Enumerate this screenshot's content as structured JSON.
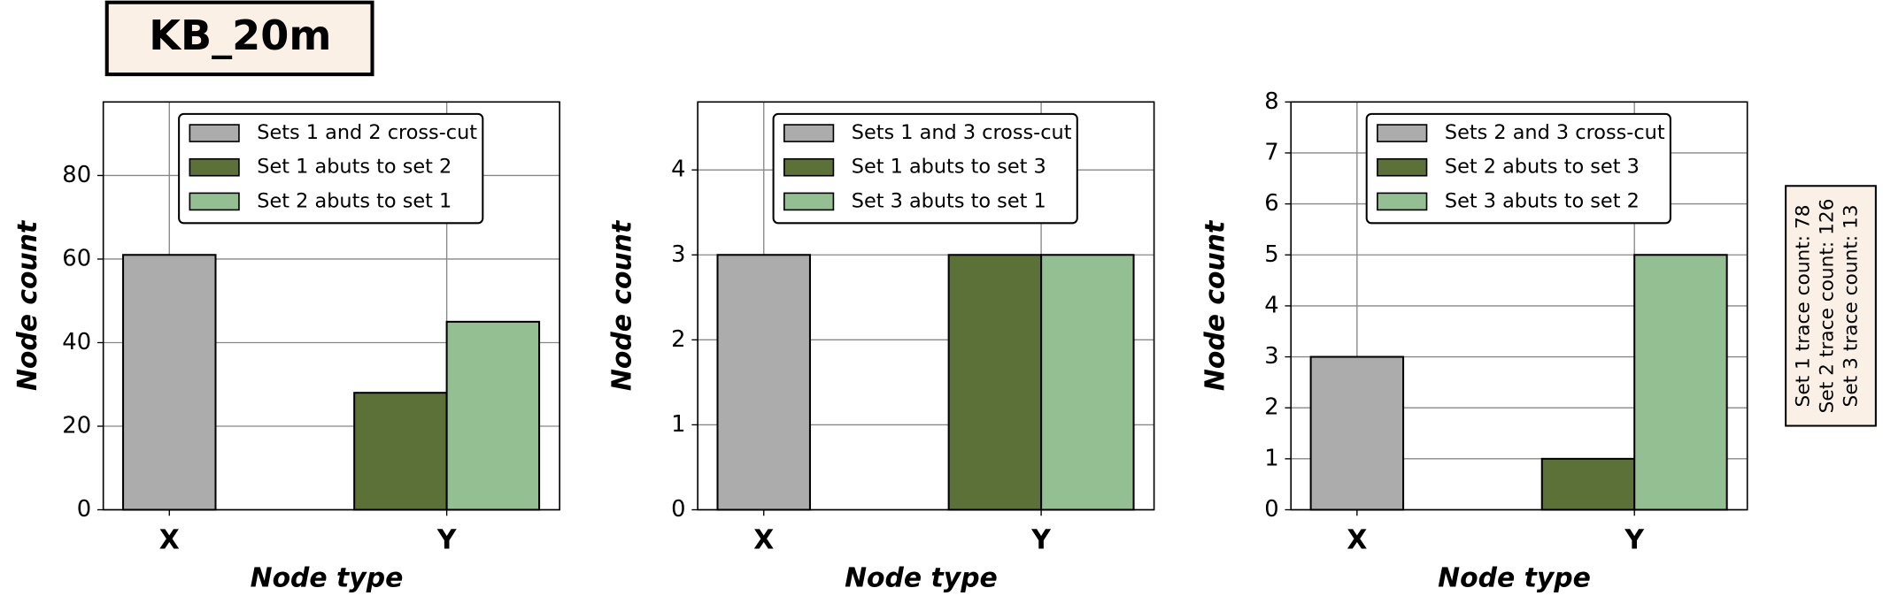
{
  "title": "KB_20m",
  "annotation": [
    "Set 1 trace count: 78",
    "Set 2 trace count: 126",
    "Set 3 trace count: 13"
  ],
  "chart_data": [
    {
      "type": "bar",
      "xlabel": "Node type",
      "ylabel": "Node count",
      "categories": [
        "X",
        "Y"
      ],
      "series": [
        {
          "name": "Sets 1 and 2 cross-cut",
          "color": "#acacac",
          "values": [
            61,
            null
          ]
        },
        {
          "name": "Set 1 abuts to set 2",
          "color": "#5c7137",
          "values": [
            null,
            28
          ]
        },
        {
          "name": "Set 2 abuts to set 1",
          "color": "#93bf93",
          "values": [
            null,
            45
          ]
        }
      ],
      "ylim": [
        0,
        97.6
      ],
      "yticks": [
        0,
        20,
        40,
        60,
        80
      ],
      "grid": true,
      "legend": "upper center"
    },
    {
      "type": "bar",
      "xlabel": "Node type",
      "ylabel": "Node count",
      "categories": [
        "X",
        "Y"
      ],
      "series": [
        {
          "name": "Sets 1 and 3 cross-cut",
          "color": "#acacac",
          "values": [
            3,
            null
          ]
        },
        {
          "name": "Set 1 abuts to set 3",
          "color": "#5c7137",
          "values": [
            null,
            3
          ]
        },
        {
          "name": "Set 3 abuts to set 1",
          "color": "#93bf93",
          "values": [
            null,
            3
          ]
        }
      ],
      "ylim": [
        0,
        4.8
      ],
      "yticks": [
        0,
        1,
        2,
        3,
        4
      ],
      "grid": true,
      "legend": "upper center"
    },
    {
      "type": "bar",
      "xlabel": "Node type",
      "ylabel": "Node count",
      "categories": [
        "X",
        "Y"
      ],
      "series": [
        {
          "name": "Sets 2 and 3 cross-cut",
          "color": "#acacac",
          "values": [
            3,
            null
          ]
        },
        {
          "name": "Set 2 abuts to set 3",
          "color": "#5c7137",
          "values": [
            null,
            1
          ]
        },
        {
          "name": "Set 3 abuts to set 2",
          "color": "#93bf93",
          "values": [
            null,
            5
          ]
        }
      ],
      "ylim": [
        0,
        8
      ],
      "yticks": [
        0,
        1,
        2,
        3,
        4,
        5,
        6,
        7,
        8
      ],
      "grid": true,
      "legend": "upper center"
    }
  ]
}
